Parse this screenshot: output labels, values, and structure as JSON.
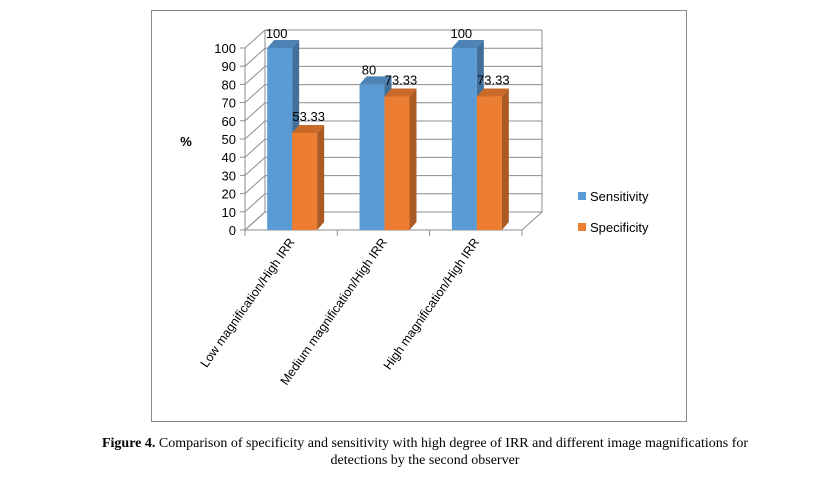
{
  "chart_data": {
    "type": "bar",
    "categories": [
      "Low magnification/High IRR",
      "Medium magnification/High IRR",
      "High magnification/High IRR"
    ],
    "series": [
      {
        "name": "Sensitivity",
        "values": [
          100,
          80,
          100
        ],
        "labels": [
          "100",
          "80",
          "100"
        ],
        "color": "#5b9bd5"
      },
      {
        "name": "Specificity",
        "values": [
          53.33,
          73.33,
          73.33
        ],
        "labels": [
          "53.33",
          "73.33",
          "73.33"
        ],
        "color": "#ed7d31"
      }
    ],
    "ylabel": "%",
    "ylim": [
      0,
      100
    ],
    "yticks": [
      0,
      10,
      20,
      30,
      40,
      50,
      60,
      70,
      80,
      90,
      100
    ],
    "grid": true,
    "legend_position": "right",
    "style": "3d-clustered-column"
  },
  "caption": {
    "label": "Figure 4.",
    "text": " Comparison of specificity and sensitivity with high degree of IRR and different image magnifications for detections by the second observer"
  }
}
